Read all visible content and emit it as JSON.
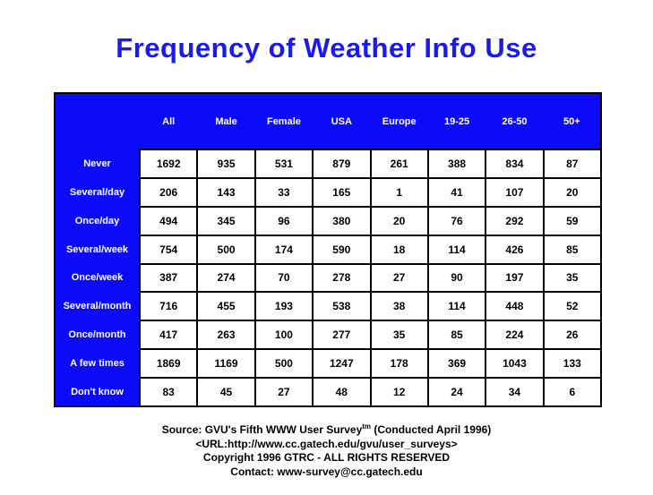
{
  "title": "Frequency of Weather Info Use",
  "chart_data": {
    "type": "table",
    "title": "Frequency of Weather Info Use",
    "columns": [
      "All",
      "Male",
      "Female",
      "USA",
      "Europe",
      "19-25",
      "26-50",
      "50+"
    ],
    "rows": [
      {
        "label": "Never",
        "values": [
          1692,
          935,
          531,
          879,
          261,
          388,
          834,
          87
        ]
      },
      {
        "label": "Several/day",
        "values": [
          206,
          143,
          33,
          165,
          1,
          41,
          107,
          20
        ]
      },
      {
        "label": "Once/day",
        "values": [
          494,
          345,
          96,
          380,
          20,
          76,
          292,
          59
        ]
      },
      {
        "label": "Several/week",
        "values": [
          754,
          500,
          174,
          590,
          18,
          114,
          426,
          85
        ]
      },
      {
        "label": "Once/week",
        "values": [
          387,
          274,
          70,
          278,
          27,
          90,
          197,
          35
        ]
      },
      {
        "label": "Several/month",
        "values": [
          716,
          455,
          193,
          538,
          38,
          114,
          448,
          52
        ]
      },
      {
        "label": "Once/month",
        "values": [
          417,
          263,
          100,
          277,
          35,
          85,
          224,
          26
        ]
      },
      {
        "label": "A few times",
        "values": [
          1869,
          1169,
          500,
          1247,
          178,
          369,
          1043,
          133
        ]
      },
      {
        "label": "Don't know",
        "values": [
          83,
          45,
          27,
          48,
          12,
          24,
          34,
          6
        ]
      }
    ]
  },
  "footer": {
    "source_prefix": "Source: GVU's Fifth WWW User Survey",
    "source_sup": "tm",
    "source_suffix": " (Conducted April 1996)",
    "url_line": "<URL:http://www.cc.gatech.edu/gvu/user_surveys>",
    "copyright_line": "Copyright 1996 GTRC -  ALL RIGHTS RESERVED",
    "contact_line": "Contact: www-survey@cc.gatech.edu"
  },
  "colors": {
    "table_blue": "#0b0bf9",
    "title_blue": "#1a1aee",
    "header_text": "#ffffff",
    "cell_text": "#000000"
  }
}
